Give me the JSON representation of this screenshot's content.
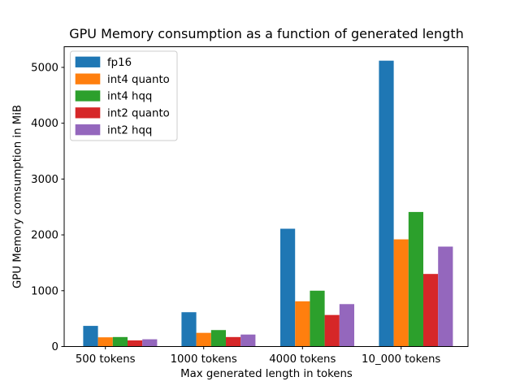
{
  "figure": {
    "background_color": "#ffffff",
    "axis_color": "#000000"
  },
  "chart_data": {
    "type": "bar",
    "title": "GPU Memory consumption as a function of generated length",
    "xlabel": "Max generated length in tokens",
    "ylabel": "GPU Memory comsumption in MiB",
    "categories": [
      "500 tokens",
      "1000 tokens",
      "4000 tokens",
      "10_000 tokens"
    ],
    "series": [
      {
        "name": "fp16",
        "color": "#1f77b4",
        "values": [
          370,
          615,
          2110,
          5120
        ]
      },
      {
        "name": "int4 quanto",
        "color": "#ff7f0e",
        "values": [
          165,
          245,
          810,
          1920
        ]
      },
      {
        "name": "int4 hqq",
        "color": "#2ca02c",
        "values": [
          170,
          295,
          1000,
          2410
        ]
      },
      {
        "name": "int2 quanto",
        "color": "#d62728",
        "values": [
          110,
          170,
          565,
          1300
        ]
      },
      {
        "name": "int2 hqq",
        "color": "#9467bd",
        "values": [
          130,
          215,
          760,
          1790
        ]
      }
    ],
    "ylim": [
      0,
      5370
    ],
    "yticks": [
      0,
      1000,
      2000,
      3000,
      4000,
      5000
    ],
    "legend_position": "upper left",
    "legend_entries": [
      "fp16",
      "int4 quanto",
      "int4 hqq",
      "int2 quanto",
      "int2 hqq"
    ],
    "grid": false,
    "legend_border_color": "#cccccc"
  }
}
